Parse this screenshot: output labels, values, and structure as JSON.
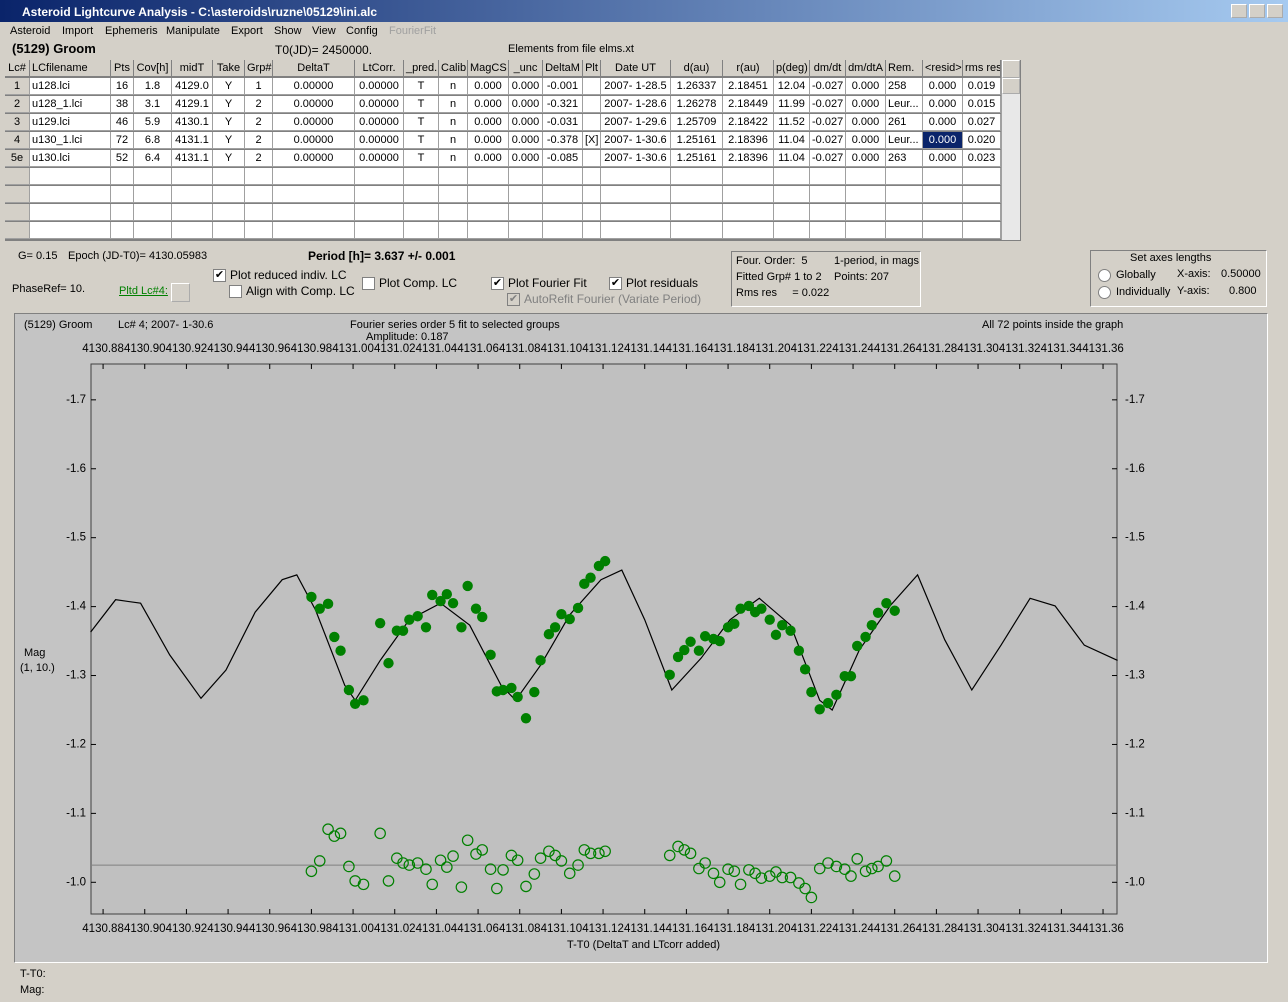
{
  "window": {
    "title": "Asteroid Lightcurve Analysis - C:\\asteroids\\ruzne\\05129\\ini.alc"
  },
  "menu": [
    "Asteroid",
    "Import",
    "Ephemeris",
    "Manipulate",
    "Export",
    "Show",
    "View",
    "Config",
    "FourierFit"
  ],
  "header": {
    "object": "(5129) Groom",
    "t0": "T0(JD)= 2450000.",
    "elements": "Elements from file elms.xt"
  },
  "table": {
    "columns": [
      "Lc#",
      "LCfilename",
      "Pts",
      "Cov[h]",
      "midT",
      "Take",
      "Grp#",
      "DeltaT",
      "LtCorr.",
      "_pred.",
      "Calib.",
      "MagCS",
      "_unc",
      "DeltaM",
      "Plt",
      "Date UT",
      "d(au)",
      "r(au)",
      "p(deg)",
      "dm/dt",
      "dm/dtA",
      "Rem.",
      "<resid>",
      "rms res"
    ],
    "rows": [
      [
        "1",
        "u128.lci",
        "16",
        "1.8",
        "4129.0",
        "Y",
        "1",
        "0.00000",
        "0.00000",
        "T",
        "n",
        "0.000",
        "0.000",
        "-0.001",
        null,
        "2007- 1-28.5",
        "1.26337",
        "2.18451",
        "12.04",
        "-0.027",
        "0.000",
        "258",
        "0.000",
        "0.019"
      ],
      [
        "2",
        "u128_1.lci",
        "38",
        "3.1",
        "4129.1",
        "Y",
        "2",
        "0.00000",
        "0.00000",
        "T",
        "n",
        "0.000",
        "0.000",
        "-0.321",
        null,
        "2007- 1-28.6",
        "1.26278",
        "2.18449",
        "11.99",
        "-0.027",
        "0.000",
        "Leur...",
        "0.000",
        "0.015"
      ],
      [
        "3",
        "u129.lci",
        "46",
        "5.9",
        "4130.1",
        "Y",
        "2",
        "0.00000",
        "0.00000",
        "T",
        "n",
        "0.000",
        "0.000",
        "-0.031",
        null,
        "2007- 1-29.6",
        "1.25709",
        "2.18422",
        "11.52",
        "-0.027",
        "0.000",
        "261",
        "0.000",
        "0.027"
      ],
      [
        "4",
        "u130_1.lci",
        "72",
        "6.8",
        "4131.1",
        "Y",
        "2",
        "0.00000",
        "0.00000",
        "T",
        "n",
        "0.000",
        "0.000",
        "-0.378",
        "[X]",
        "2007- 1-30.6",
        "1.25161",
        "2.18396",
        "11.04",
        "-0.027",
        "0.000",
        "Leur...",
        "0.000",
        "0.020"
      ],
      [
        "5e",
        "u130.lci",
        "52",
        "6.4",
        "4131.1",
        "Y",
        "2",
        "0.00000",
        "0.00000",
        "T",
        "n",
        "0.000",
        "0.000",
        "-0.085",
        null,
        "2007- 1-30.6",
        "1.25161",
        "2.18396",
        "11.04",
        "-0.027",
        "0.000",
        "263",
        "0.000",
        "0.023"
      ]
    ],
    "selected": [
      3,
      22
    ]
  },
  "controls": {
    "g": "G= 0.15",
    "epoch": "Epoch (JD-T0)= 4130.05983",
    "period": "Period [h]= 3.637 +/- 0.001",
    "phase_ref": "PhaseRef= 10.",
    "plotted_lc": "Pltd Lc#4:",
    "checkboxes": [
      {
        "label": "Plot reduced indiv. LC",
        "checked": true,
        "enabled": true
      },
      {
        "label": "Align with Comp. LC",
        "checked": false,
        "enabled": true
      },
      {
        "label": "Plot Comp. LC",
        "checked": false,
        "enabled": true
      },
      {
        "label": "Plot Fourier Fit",
        "checked": true,
        "enabled": true
      },
      {
        "label": "Plot residuals",
        "checked": true,
        "enabled": true
      },
      {
        "label": "AutoRefit Fourier (Variate Period)",
        "checked": true,
        "enabled": false
      }
    ]
  },
  "fit_info": {
    "order": "Four. Order:  5",
    "period_mode": "1-period, in mags",
    "groups": "Fitted Grp# 1 to 2",
    "points": "Points: 207",
    "rms": "Rms res     = 0.022"
  },
  "axes_box": {
    "title": "Set axes lengths",
    "options": [
      "Globally",
      "Individually"
    ],
    "x_label": "X-axis:",
    "x_value": "0.50000",
    "y_label": "Y-axis:",
    "y_value": "0.800"
  },
  "plot": {
    "type": "scatter",
    "object": "(5129) Groom",
    "lc": "Lc# 4; 2007- 1-30.6",
    "title": "Fourier series order 5 fit to selected groups",
    "amplitude": "Amplitude: 0.187",
    "note": "All 72 points inside the graph",
    "y_label": "Mag",
    "y_sublabel": "(1, 10.)",
    "x_label": "T-T0 (DeltaT and LTcorr added)",
    "point_color": "#008000",
    "fit_color": "#000000",
    "xlim": [
      4130.8742,
      4131.3667
    ],
    "ylim": [
      -0.954,
      -1.752
    ],
    "xticks": [
      4130.88,
      {
        "value": 4130.9,
        "label": "4130.90"
      },
      4130.92,
      4130.94,
      4130.96,
      4130.98,
      {
        "value": 4131,
        "label": "4131.00"
      },
      4131.02,
      4131.04,
      4131.06,
      4131.08,
      {
        "value": 4131.1,
        "label": "4131.10"
      },
      4131.12,
      4131.14,
      4131.16,
      4131.18,
      {
        "value": 4131.2,
        "label": "4131.20"
      },
      4131.22,
      4131.24,
      4131.26,
      4131.28,
      {
        "value": 4131.3,
        "label": "4131.30"
      },
      4131.32,
      4131.34,
      4131.36
    ],
    "yticks": [
      -1.7,
      -1.6,
      -1.5,
      -1.4,
      -1.3,
      -1.2,
      -1.1,
      {
        "value": -1,
        "label": "-1.0"
      }
    ],
    "points": {
      "x": [
        4130.98,
        4130.984,
        4130.988,
        4130.991,
        4130.994,
        4130.998,
        4131.001,
        4131.005,
        4131.013,
        4131.017,
        4131.021,
        4131.024,
        4131.027,
        4131.031,
        4131.035,
        4131.038,
        4131.042,
        4131.045,
        4131.048,
        4131.052,
        4131.055,
        4131.059,
        4131.062,
        4131.066,
        4131.069,
        4131.072,
        4131.076,
        4131.079,
        4131.083,
        4131.087,
        4131.09,
        4131.094,
        4131.097,
        4131.1,
        4131.104,
        4131.108,
        4131.111,
        4131.114,
        4131.118,
        4131.121,
        4131.152,
        4131.156,
        4131.159,
        4131.162,
        4131.166,
        4131.169,
        4131.173,
        4131.176,
        4131.18,
        4131.183,
        4131.186,
        4131.19,
        4131.193,
        4131.196,
        4131.2,
        4131.203,
        4131.206,
        4131.21,
        4131.214,
        4131.217,
        4131.22,
        4131.224,
        4131.228,
        4131.232,
        4131.236,
        4131.239,
        4131.242,
        4131.246,
        4131.249,
        4131.252,
        4131.256,
        4131.26
      ],
      "y": [
        -1.414,
        -1.397,
        -1.404,
        -1.356,
        -1.336,
        -1.279,
        -1.259,
        -1.264,
        -1.376,
        -1.318,
        -1.365,
        -1.365,
        -1.381,
        -1.386,
        -1.37,
        -1.417,
        -1.408,
        -1.418,
        -1.405,
        -1.37,
        -1.43,
        -1.397,
        -1.385,
        -1.33,
        -1.277,
        -1.279,
        -1.282,
        -1.269,
        -1.238,
        -1.276,
        -1.322,
        -1.36,
        -1.37,
        -1.389,
        -1.382,
        -1.398,
        -1.433,
        -1.442,
        -1.459,
        -1.466,
        -1.301,
        -1.327,
        -1.337,
        -1.349,
        -1.336,
        -1.357,
        -1.353,
        -1.35,
        -1.37,
        -1.375,
        -1.397,
        -1.401,
        -1.392,
        -1.397,
        -1.381,
        -1.359,
        -1.373,
        -1.365,
        -1.336,
        -1.309,
        -1.276,
        -1.251,
        -1.26,
        -1.272,
        -1.299,
        -1.299,
        -1.343,
        -1.356,
        -1.373,
        -1.391,
        -1.405,
        -1.394
      ]
    },
    "residual_y": [
      -1.016,
      -1.031,
      -1.077,
      -1.067,
      -1.071,
      -1.023,
      -1.002,
      -0.997,
      -1.071,
      -1.002,
      -1.035,
      -1.028,
      -1.025,
      -1.028,
      -1.019,
      -0.997,
      -1.032,
      -1.022,
      -1.038,
      -0.993,
      -1.061,
      -1.041,
      -1.047,
      -1.019,
      -0.991,
      -1.018,
      -1.039,
      -1.032,
      -0.994,
      -1.012,
      -1.035,
      -1.045,
      -1.039,
      -1.031,
      -1.013,
      -1.025,
      -1.047,
      -1.042,
      -1.042,
      -1.045,
      -1.039,
      -1.052,
      -1.047,
      -1.042,
      -1.02,
      -1.028,
      -1.013,
      -1.0,
      -1.019,
      -1.016,
      -0.997,
      -1.018,
      -1.013,
      -1.006,
      -1.009,
      -1.015,
      -1.007,
      -1.007,
      -0.999,
      -0.991,
      -0.978,
      -1.02,
      -1.028,
      -1.023,
      -1.019,
      -1.009,
      -1.034,
      -1.016,
      -1.02,
      -1.023,
      -1.031,
      -1.009
    ],
    "residual_baseline": -1.025,
    "fit": {
      "x": [
        4130.874,
        4130.886,
        4130.898,
        4130.912,
        4130.927,
        4130.939,
        4130.953,
        4130.966,
        4130.973,
        4130.982,
        4130.996,
        4131.001,
        4131.013,
        4131.027,
        4131.042,
        4131.056,
        4131.071,
        4131.078,
        4131.09,
        4131.104,
        4131.119,
        4131.129,
        4131.14,
        4131.153,
        4131.167,
        4131.181,
        4131.195,
        4131.21,
        4131.224,
        4131.23,
        4131.243,
        4131.258,
        4131.271,
        4131.284,
        4131.297,
        4131.311,
        4131.325,
        4131.337,
        4131.351,
        4131.367
      ],
      "y": [
        -1.363,
        -1.41,
        -1.405,
        -1.33,
        -1.267,
        -1.308,
        -1.392,
        -1.439,
        -1.446,
        -1.395,
        -1.286,
        -1.264,
        -1.322,
        -1.381,
        -1.405,
        -1.373,
        -1.286,
        -1.264,
        -1.315,
        -1.388,
        -1.439,
        -1.453,
        -1.381,
        -1.279,
        -1.325,
        -1.381,
        -1.412,
        -1.373,
        -1.264,
        -1.25,
        -1.337,
        -1.402,
        -1.446,
        -1.352,
        -1.279,
        -1.344,
        -1.412,
        -1.401,
        -1.344,
        -1.322
      ]
    }
  },
  "status": {
    "t": "T-T0:",
    "mag": "Mag:"
  }
}
